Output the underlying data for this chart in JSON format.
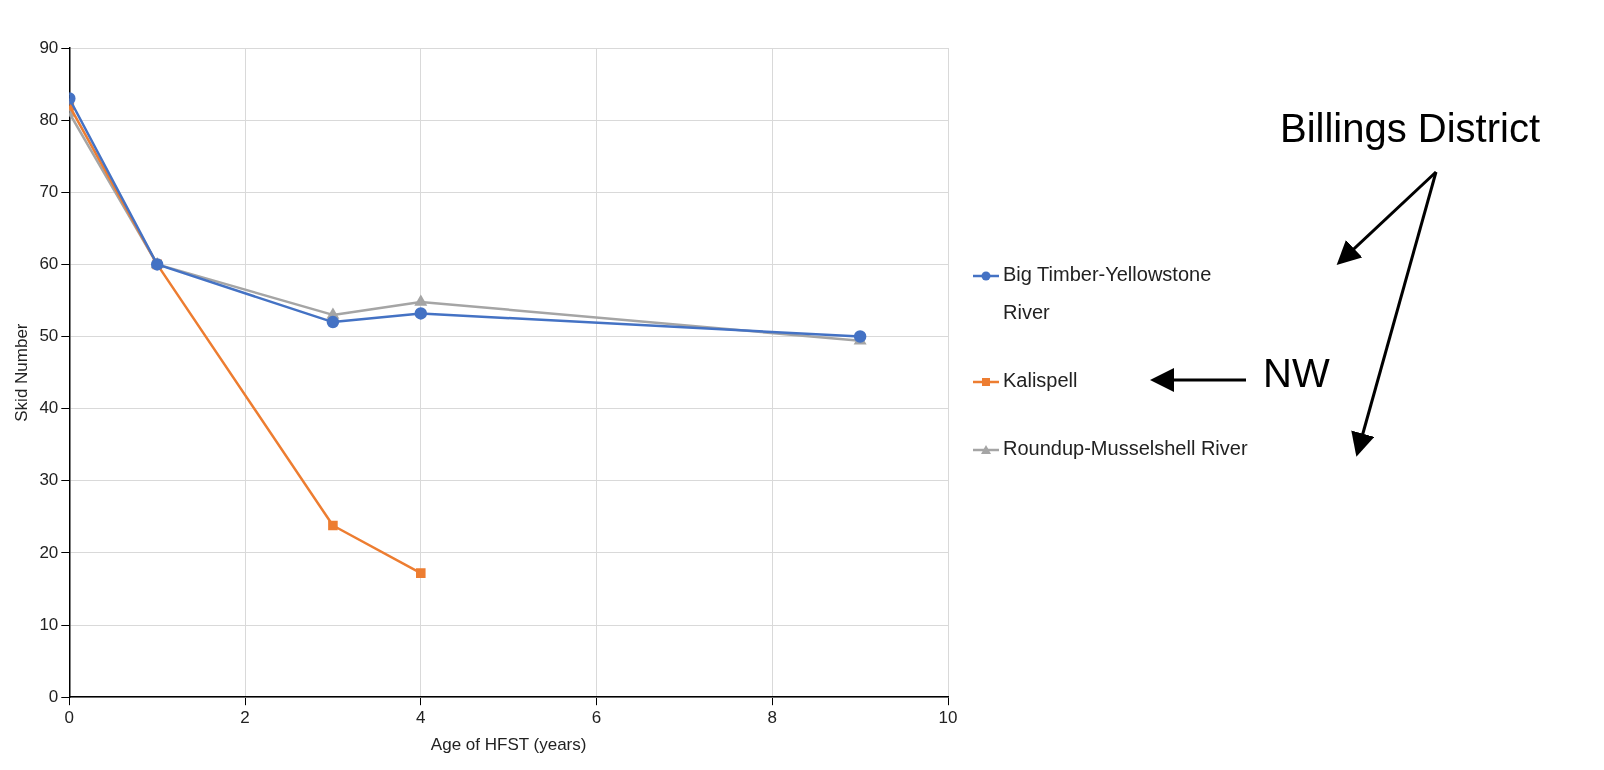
{
  "chart_data": {
    "type": "line",
    "xlabel": "Age of HFST (years)",
    "ylabel": "Skid Number",
    "xlim": [
      0,
      10
    ],
    "xticks": [
      0,
      2,
      4,
      6,
      8,
      10
    ],
    "ylim": [
      0,
      90
    ],
    "yticks": [
      0,
      10,
      20,
      30,
      40,
      50,
      60,
      70,
      80,
      90
    ],
    "grid": true,
    "legend": "right",
    "series": [
      {
        "name": "Big Timber-Yellowstone River",
        "color": "#4472c4",
        "marker": "circle",
        "x": [
          0,
          1,
          3,
          4,
          9
        ],
        "values": [
          83,
          60,
          52,
          53.2,
          50
        ]
      },
      {
        "name": "Kalispell",
        "color": "#ed7d31",
        "marker": "square",
        "x": [
          0,
          1,
          3,
          4
        ],
        "values": [
          82,
          60,
          23.8,
          17.2
        ]
      },
      {
        "name": "Roundup-Musselshell River",
        "color": "#a5a5a5",
        "marker": "triangle",
        "x": [
          0,
          1,
          3,
          4,
          9
        ],
        "values": [
          81,
          60,
          53,
          54.8,
          49.4
        ]
      }
    ],
    "annotations": [
      "Billings District",
      "NW"
    ]
  }
}
